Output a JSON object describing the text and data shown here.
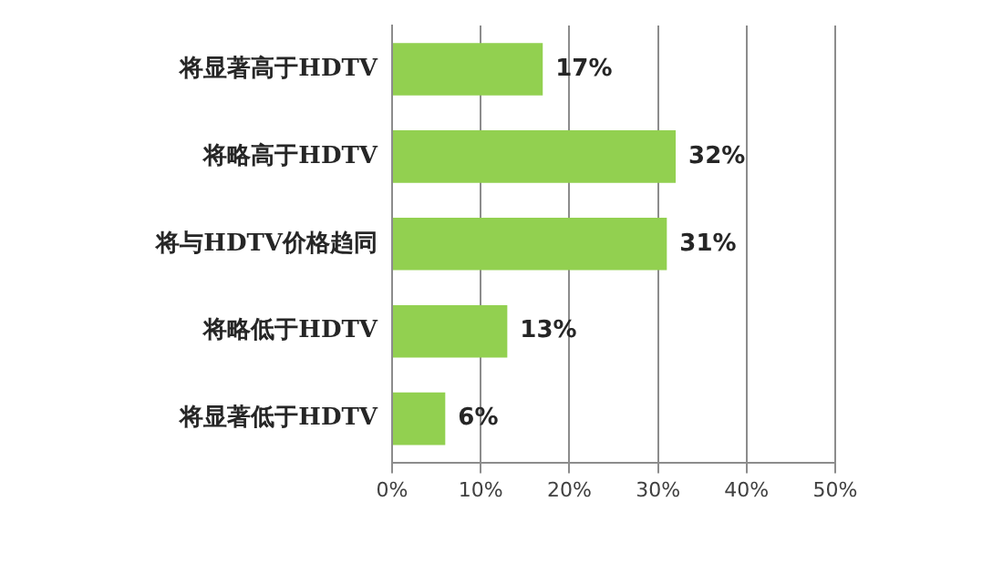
{
  "chart_data": {
    "type": "bar",
    "orientation": "horizontal",
    "categories": [
      "将显著高于HDTV",
      "将略高于HDTV",
      "将与HDTV价格趋同",
      "将略低于HDTV",
      "将显著低于HDTV"
    ],
    "values": [
      17,
      32,
      31,
      13,
      6
    ],
    "color": "#92d050",
    "value_labels": [
      "17%",
      "32%",
      "31%",
      "13%",
      "6%"
    ],
    "xlim": [
      0,
      50
    ],
    "xticks": [
      {
        "value": 0,
        "label": "0%"
      },
      {
        "value": 10,
        "label": "10%"
      },
      {
        "value": 20,
        "label": "20%"
      },
      {
        "value": 30,
        "label": "30%"
      },
      {
        "value": 40,
        "label": "40%"
      },
      {
        "value": 50,
        "label": "50%"
      }
    ],
    "grid": "x",
    "legend": false
  }
}
